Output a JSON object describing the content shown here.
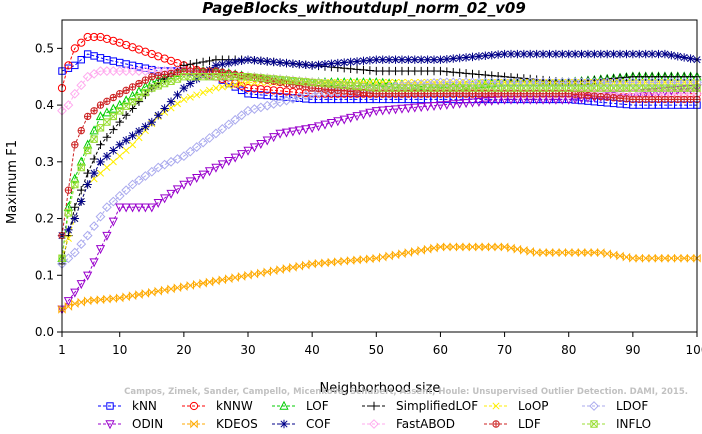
{
  "chart_data": {
    "type": "line",
    "title": "PageBlocks_withoutdupl_norm_02_v09",
    "xlabel": "Neighborhood size",
    "ylabel": "Maximum F1",
    "xlim": [
      1,
      100
    ],
    "ylim": [
      0.0,
      0.55
    ],
    "xticks": [
      1,
      10,
      20,
      30,
      40,
      50,
      60,
      70,
      80,
      90,
      100
    ],
    "yticks": [
      0.0,
      0.1,
      0.2,
      0.3,
      0.4,
      0.5
    ],
    "xtick_labels": [
      "1",
      "10",
      "20",
      "30",
      "40",
      "50",
      "60",
      "70",
      "80",
      "90",
      "100"
    ],
    "ytick_labels": [
      "0.0",
      "0.1",
      "0.2",
      "0.3",
      "0.4",
      "0.5"
    ],
    "grid": false,
    "legend_position": "bottom",
    "watermark": "Campos, Zimek, Sander, Campello, Micenková, Schubert, Assent, Houle: Unsupervised Outlier Detection. DAMI, 2015.",
    "series": [
      {
        "name": "kNN",
        "color": "#0000ff",
        "marker": "square",
        "x": [
          1,
          3,
          5,
          8,
          12,
          16,
          20,
          25,
          30,
          40,
          50,
          60,
          70,
          80,
          90,
          100
        ],
        "y": [
          0.46,
          0.47,
          0.49,
          0.48,
          0.47,
          0.46,
          0.46,
          0.45,
          0.42,
          0.41,
          0.41,
          0.41,
          0.41,
          0.41,
          0.4,
          0.4
        ]
      },
      {
        "name": "kNNW",
        "color": "#ff0000",
        "marker": "circle",
        "x": [
          1,
          2,
          3,
          5,
          7,
          10,
          15,
          20,
          25,
          30,
          40,
          50,
          60,
          70,
          80,
          90,
          100
        ],
        "y": [
          0.43,
          0.47,
          0.5,
          0.52,
          0.52,
          0.51,
          0.49,
          0.47,
          0.45,
          0.43,
          0.42,
          0.42,
          0.42,
          0.42,
          0.42,
          0.42,
          0.42
        ]
      },
      {
        "name": "LOF",
        "color": "#00cc00",
        "marker": "triangle-up",
        "x": [
          1,
          2,
          3,
          5,
          7,
          10,
          15,
          20,
          25,
          30,
          40,
          50,
          60,
          70,
          80,
          90,
          100
        ],
        "y": [
          0.13,
          0.22,
          0.27,
          0.33,
          0.38,
          0.4,
          0.44,
          0.46,
          0.46,
          0.45,
          0.44,
          0.44,
          0.43,
          0.44,
          0.44,
          0.45,
          0.45
        ]
      },
      {
        "name": "SimplifiedLOF",
        "color": "#000000",
        "marker": "plus",
        "x": [
          1,
          2,
          3,
          5,
          7,
          10,
          15,
          20,
          25,
          30,
          40,
          50,
          60,
          70,
          80,
          90,
          100
        ],
        "y": [
          0.12,
          0.17,
          0.22,
          0.28,
          0.33,
          0.37,
          0.43,
          0.47,
          0.48,
          0.48,
          0.47,
          0.46,
          0.46,
          0.45,
          0.44,
          0.45,
          0.45
        ]
      },
      {
        "name": "LoOP",
        "color": "#ffee00",
        "marker": "x",
        "x": [
          1,
          3,
          5,
          8,
          12,
          16,
          20,
          25,
          30,
          40,
          50,
          60,
          70,
          80,
          90,
          100
        ],
        "y": [
          0.13,
          0.2,
          0.26,
          0.29,
          0.33,
          0.38,
          0.41,
          0.43,
          0.44,
          0.44,
          0.44,
          0.44,
          0.44,
          0.44,
          0.44,
          0.44
        ]
      },
      {
        "name": "LDOF",
        "color": "#aaaaee",
        "marker": "diamond",
        "x": [
          1,
          3,
          5,
          8,
          12,
          16,
          20,
          25,
          30,
          40,
          50,
          60,
          70,
          80,
          90,
          100
        ],
        "y": [
          0.12,
          0.14,
          0.17,
          0.22,
          0.26,
          0.29,
          0.31,
          0.35,
          0.39,
          0.42,
          0.43,
          0.44,
          0.44,
          0.44,
          0.44,
          0.44
        ]
      },
      {
        "name": "ODIN",
        "color": "#9900cc",
        "marker": "triangle-down",
        "x": [
          1,
          3,
          5,
          8,
          10,
          15,
          20,
          25,
          30,
          35,
          40,
          50,
          60,
          70,
          80,
          90,
          100
        ],
        "y": [
          0.04,
          0.07,
          0.1,
          0.17,
          0.22,
          0.22,
          0.26,
          0.29,
          0.32,
          0.35,
          0.36,
          0.39,
          0.4,
          0.41,
          0.41,
          0.42,
          0.43
        ]
      },
      {
        "name": "KDEOS",
        "color": "#ffaa00",
        "marker": "bowtie",
        "x": [
          1,
          3,
          5,
          10,
          15,
          20,
          25,
          30,
          40,
          50,
          55,
          60,
          65,
          70,
          75,
          80,
          85,
          90,
          95,
          100
        ],
        "y": [
          0.04,
          0.05,
          0.055,
          0.06,
          0.07,
          0.08,
          0.09,
          0.1,
          0.12,
          0.13,
          0.14,
          0.15,
          0.15,
          0.15,
          0.14,
          0.14,
          0.14,
          0.13,
          0.13,
          0.13
        ]
      },
      {
        "name": "COF",
        "color": "#000088",
        "marker": "asterisk",
        "x": [
          1,
          2,
          3,
          5,
          7,
          10,
          15,
          20,
          25,
          30,
          40,
          50,
          60,
          70,
          75,
          80,
          85,
          90,
          95,
          100
        ],
        "y": [
          0.17,
          0.18,
          0.2,
          0.26,
          0.3,
          0.33,
          0.37,
          0.43,
          0.47,
          0.48,
          0.47,
          0.48,
          0.48,
          0.49,
          0.49,
          0.49,
          0.49,
          0.49,
          0.49,
          0.48
        ]
      },
      {
        "name": "FastABOD",
        "color": "#ffaaee",
        "marker": "diamond",
        "x": [
          1,
          2,
          3,
          5,
          7,
          10,
          15,
          20,
          25,
          30,
          40,
          50,
          60,
          70,
          80,
          90,
          100
        ],
        "y": [
          0.39,
          0.4,
          0.42,
          0.45,
          0.46,
          0.46,
          0.46,
          0.46,
          0.45,
          0.45,
          0.44,
          0.43,
          0.43,
          0.42,
          0.42,
          0.42,
          0.42
        ]
      },
      {
        "name": "LDF",
        "color": "#cc2222",
        "marker": "circle-plus",
        "x": [
          1,
          2,
          3,
          5,
          7,
          10,
          15,
          20,
          25,
          30,
          40,
          50,
          60,
          70,
          80,
          90,
          100
        ],
        "y": [
          0.17,
          0.25,
          0.33,
          0.38,
          0.4,
          0.42,
          0.45,
          0.46,
          0.46,
          0.45,
          0.43,
          0.42,
          0.42,
          0.42,
          0.42,
          0.41,
          0.41
        ]
      },
      {
        "name": "INFLO",
        "color": "#99dd33",
        "marker": "square-x",
        "x": [
          1,
          2,
          3,
          5,
          7,
          10,
          15,
          20,
          25,
          30,
          40,
          50,
          60,
          70,
          80,
          90,
          100
        ],
        "y": [
          0.13,
          0.21,
          0.26,
          0.32,
          0.36,
          0.39,
          0.43,
          0.45,
          0.45,
          0.45,
          0.44,
          0.43,
          0.43,
          0.43,
          0.43,
          0.43,
          0.43
        ]
      }
    ],
    "legend_rows": [
      [
        "kNN",
        "kNNW",
        "LOF",
        "SimplifiedLOF",
        "LoOP",
        "LDOF"
      ],
      [
        "ODIN",
        "KDEOS",
        "COF",
        "FastABOD",
        "LDF",
        "INFLO"
      ]
    ]
  }
}
